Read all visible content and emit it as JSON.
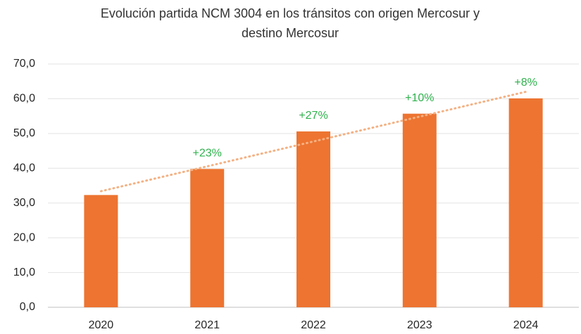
{
  "chart_data": {
    "type": "bar",
    "title": [
      "Evolución partida NCM 3004 en los tránsitos con origen Mercosur y",
      "destino Mercosur"
    ],
    "categories": [
      "2020",
      "2021",
      "2022",
      "2023",
      "2024"
    ],
    "values": [
      32.3,
      39.8,
      50.6,
      55.7,
      60.1
    ],
    "growth_labels": [
      null,
      "+23%",
      "+27%",
      "+10%",
      "+8%"
    ],
    "growth_color": "#2eb24c",
    "color": "#ed7431",
    "trendline": true,
    "trendline_color": "#f4b183",
    "ylim": [
      0,
      70
    ],
    "yticks": [
      {
        "value": 0,
        "label": "0,0"
      },
      {
        "value": 10,
        "label": "10,0"
      },
      {
        "value": 20,
        "label": "20,0"
      },
      {
        "value": 30,
        "label": "30,0"
      },
      {
        "value": 40,
        "label": "40,0"
      },
      {
        "value": 50,
        "label": "50,0"
      },
      {
        "value": 60,
        "label": "60,0"
      },
      {
        "value": 70,
        "label": "70,0"
      }
    ],
    "grid": true
  }
}
